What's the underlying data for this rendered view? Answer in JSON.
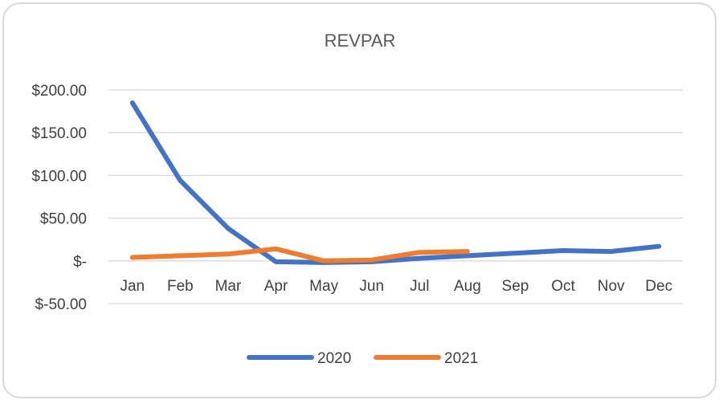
{
  "chart_data": {
    "type": "line",
    "title": "REVPAR",
    "categories": [
      "Jan",
      "Feb",
      "Mar",
      "Apr",
      "May",
      "Jun",
      "Jul",
      "Aug",
      "Sep",
      "Oct",
      "Nov",
      "Dec"
    ],
    "y_tick_labels": [
      "$200.00",
      "$150.00",
      "$100.00",
      "$50.00",
      "$-",
      "$-50.00"
    ],
    "y_tick_values": [
      200,
      150,
      100,
      50,
      0,
      -50
    ],
    "ylim": [
      -50,
      200
    ],
    "grid": true,
    "legend_position": "bottom",
    "series": [
      {
        "name": "2020",
        "color": "#4472C4",
        "values": [
          185,
          94,
          38,
          -1,
          -2,
          -1,
          3,
          6,
          9,
          12,
          11,
          17
        ]
      },
      {
        "name": "2021",
        "color": "#ED7D31",
        "values": [
          4,
          6,
          8,
          14,
          0,
          1,
          10,
          11,
          null,
          null,
          null,
          null
        ]
      }
    ]
  }
}
